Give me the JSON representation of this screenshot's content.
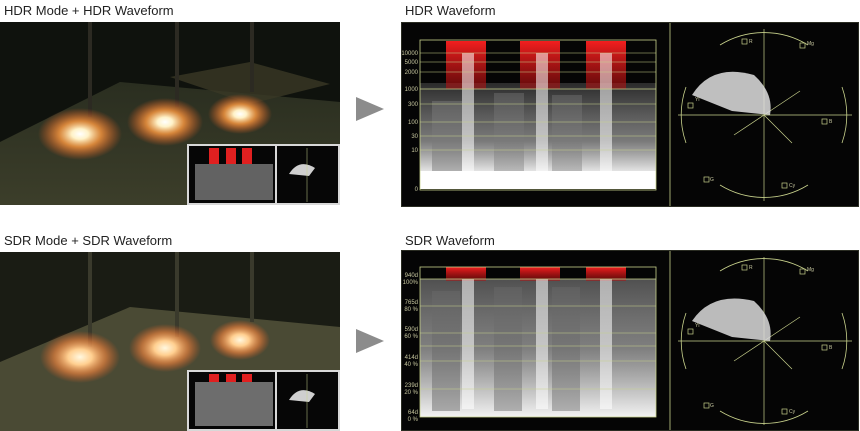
{
  "panels": {
    "hdr_mode_title": "HDR Mode + HDR Waveform",
    "sdr_mode_title": "SDR Mode + SDR Waveform",
    "hdr_wave_title": "HDR Waveform",
    "sdr_wave_title": "SDR Waveform"
  },
  "hdr_scale": [
    "10000",
    "5000",
    "2000",
    "1000",
    "300",
    "100",
    "30",
    "10",
    "0"
  ],
  "sdr_scale": [
    {
      "code": "940d",
      "pct": "100%"
    },
    {
      "code": "765d",
      "pct": "80 %"
    },
    {
      "code": "590d",
      "pct": "60 %"
    },
    {
      "code": "414d",
      "pct": "40 %"
    },
    {
      "code": "239d",
      "pct": "20 %"
    },
    {
      "code": "64d",
      "pct": "0 %"
    }
  ],
  "vectorscope_labels": [
    "R",
    "Mg",
    "B",
    "Cy",
    "G",
    "Yl"
  ],
  "colors": {
    "accent_arrow": "#8c8c8c",
    "graticule": "#c8d28c",
    "highlight": "#e02020"
  }
}
